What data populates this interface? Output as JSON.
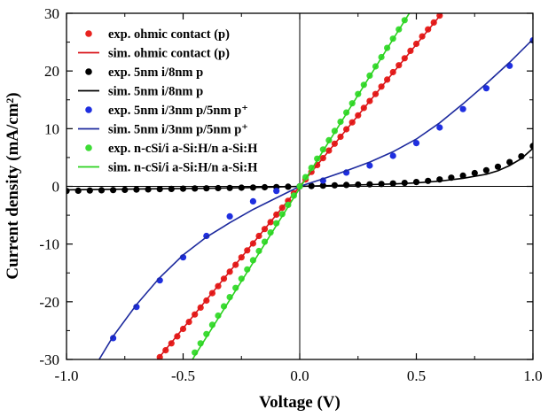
{
  "chart_data": {
    "type": "scatter",
    "xlabel": "Voltage (V)",
    "ylabel": "Current density (mA/cm²)",
    "xlim": [
      -1.0,
      1.0
    ],
    "ylim": [
      -30,
      30
    ],
    "xticks": [
      -1.0,
      -0.5,
      0.0,
      0.5,
      1.0
    ],
    "xtick_labels": [
      "-1.0",
      "-0.5",
      "0.0",
      "0.5",
      "1.0"
    ],
    "yticks": [
      -30,
      -20,
      -10,
      0,
      10,
      20,
      30
    ],
    "ytick_labels": [
      "-30",
      "-20",
      "-10",
      "0",
      "10",
      "20",
      "30"
    ],
    "zero_lines": true,
    "legend_position": "top-left",
    "series": [
      {
        "name": "exp. ohmic contact (p)",
        "kind": "points",
        "color": "#e8231f",
        "x": [
          -0.6,
          -0.575,
          -0.55,
          -0.525,
          -0.5,
          -0.475,
          -0.45,
          -0.425,
          -0.4,
          -0.375,
          -0.35,
          -0.325,
          -0.3,
          -0.275,
          -0.25,
          -0.225,
          -0.2,
          -0.175,
          -0.15,
          -0.125,
          -0.1,
          -0.075,
          -0.05,
          -0.025,
          0.0,
          0.025,
          0.05,
          0.075,
          0.1,
          0.125,
          0.15,
          0.175,
          0.2,
          0.225,
          0.25,
          0.275,
          0.3,
          0.325,
          0.35,
          0.375,
          0.4,
          0.425,
          0.45,
          0.475,
          0.5,
          0.525,
          0.55,
          0.575,
          0.6
        ],
        "y": [
          -29.6,
          -28.4,
          -27.2,
          -26.0,
          -24.7,
          -23.5,
          -22.2,
          -21.0,
          -19.8,
          -18.5,
          -17.3,
          -16.0,
          -14.8,
          -13.6,
          -12.3,
          -11.1,
          -9.9,
          -8.6,
          -7.4,
          -6.2,
          -4.9,
          -3.7,
          -2.5,
          -1.2,
          0.0,
          1.2,
          2.5,
          3.7,
          4.9,
          6.2,
          7.4,
          8.6,
          9.9,
          11.1,
          12.3,
          13.6,
          14.8,
          16.0,
          17.3,
          18.5,
          19.8,
          21.0,
          22.2,
          23.5,
          24.7,
          26.0,
          27.2,
          28.4,
          29.6
        ]
      },
      {
        "name": "sim. ohmic contact (p)",
        "kind": "line",
        "color": "#d9141a",
        "x": [
          -0.62,
          0.62
        ],
        "y": [
          -30.5,
          30.5
        ]
      },
      {
        "name": "exp. 5nm i/8nm p",
        "kind": "points",
        "color": "#000000",
        "x": [
          -1.0,
          -0.95,
          -0.9,
          -0.85,
          -0.8,
          -0.75,
          -0.7,
          -0.65,
          -0.6,
          -0.55,
          -0.5,
          -0.45,
          -0.4,
          -0.35,
          -0.3,
          -0.25,
          -0.2,
          -0.15,
          -0.1,
          -0.05,
          0.0,
          0.05,
          0.1,
          0.15,
          0.2,
          0.25,
          0.3,
          0.35,
          0.4,
          0.45,
          0.5,
          0.55,
          0.6,
          0.65,
          0.7,
          0.75,
          0.8,
          0.85,
          0.9,
          0.95,
          1.0
        ],
        "y": [
          -0.8,
          -0.75,
          -0.72,
          -0.68,
          -0.64,
          -0.6,
          -0.56,
          -0.52,
          -0.48,
          -0.44,
          -0.4,
          -0.37,
          -0.34,
          -0.3,
          -0.27,
          -0.23,
          -0.2,
          -0.16,
          -0.12,
          -0.06,
          0.0,
          0.06,
          0.12,
          0.18,
          0.24,
          0.3,
          0.36,
          0.42,
          0.5,
          0.6,
          0.75,
          0.95,
          1.2,
          1.5,
          1.85,
          2.3,
          2.8,
          3.4,
          4.2,
          5.2,
          7.0
        ]
      },
      {
        "name": "sim. 5nm i/8nm p",
        "kind": "line",
        "color": "#000000",
        "x": [
          -1.0,
          -0.8,
          -0.6,
          -0.4,
          -0.2,
          -0.1,
          0.0,
          0.1,
          0.2,
          0.3,
          0.4,
          0.5,
          0.6,
          0.7,
          0.8,
          0.85,
          0.9,
          0.95,
          1.0
        ],
        "y": [
          -0.6,
          -0.5,
          -0.42,
          -0.33,
          -0.2,
          -0.1,
          0.0,
          0.1,
          0.2,
          0.3,
          0.42,
          0.6,
          0.9,
          1.4,
          2.1,
          2.7,
          3.6,
          4.8,
          6.6
        ]
      },
      {
        "name": "exp. 5nm i/3nm p/5nm p⁺",
        "kind": "points",
        "color": "#1f2fe0",
        "x": [
          -0.8,
          -0.7,
          -0.6,
          -0.5,
          -0.4,
          -0.3,
          -0.2,
          -0.1,
          0.0,
          0.1,
          0.2,
          0.3,
          0.4,
          0.5,
          0.6,
          0.7,
          0.8,
          0.9,
          1.0
        ],
        "y": [
          -26.3,
          -20.9,
          -16.3,
          -12.3,
          -8.6,
          -5.2,
          -2.6,
          -0.8,
          0.0,
          1.0,
          2.4,
          3.6,
          5.3,
          7.5,
          10.2,
          13.4,
          17.0,
          20.9,
          25.3
        ]
      },
      {
        "name": "sim. 5nm i/3nm p/5nm p⁺",
        "kind": "line",
        "color": "#1d2a9e",
        "x": [
          -0.86,
          -0.8,
          -0.7,
          -0.6,
          -0.5,
          -0.4,
          -0.3,
          -0.2,
          -0.1,
          0.0,
          0.1,
          0.2,
          0.3,
          0.4,
          0.5,
          0.6,
          0.7,
          0.8,
          0.9,
          1.0
        ],
        "y": [
          -30.0,
          -26.0,
          -20.5,
          -15.8,
          -11.9,
          -8.8,
          -6.3,
          -4.0,
          -2.0,
          0.0,
          1.3,
          2.7,
          4.2,
          6.0,
          8.2,
          11.0,
          14.3,
          17.8,
          21.5,
          25.5
        ]
      },
      {
        "name": "exp. n-cSi/i a-Si:H/n a-Si:H",
        "kind": "points",
        "color": "#3ddc35",
        "x": [
          -0.45,
          -0.425,
          -0.4,
          -0.375,
          -0.35,
          -0.325,
          -0.3,
          -0.275,
          -0.25,
          -0.225,
          -0.2,
          -0.175,
          -0.15,
          -0.125,
          -0.1,
          -0.075,
          -0.05,
          -0.025,
          0.0,
          0.025,
          0.05,
          0.075,
          0.1,
          0.125,
          0.15,
          0.175,
          0.2,
          0.225,
          0.25,
          0.275,
          0.3,
          0.325,
          0.35,
          0.375,
          0.4,
          0.425,
          0.45
        ],
        "y": [
          -28.8,
          -27.2,
          -25.6,
          -24.0,
          -22.4,
          -20.8,
          -19.2,
          -17.6,
          -16.0,
          -14.4,
          -12.8,
          -11.2,
          -9.6,
          -8.0,
          -6.4,
          -4.8,
          -3.2,
          -1.6,
          0.0,
          1.6,
          3.2,
          4.8,
          6.4,
          8.0,
          9.6,
          11.2,
          12.8,
          14.4,
          16.0,
          17.6,
          19.2,
          20.8,
          22.4,
          24.0,
          25.6,
          27.2,
          28.8
        ]
      },
      {
        "name": "sim. n-cSi/i a-Si:H/n a-Si:H",
        "kind": "line",
        "color": "#2bd11f",
        "x": [
          -0.46,
          0.49
        ],
        "y": [
          -30.0,
          31.3
        ]
      }
    ]
  }
}
